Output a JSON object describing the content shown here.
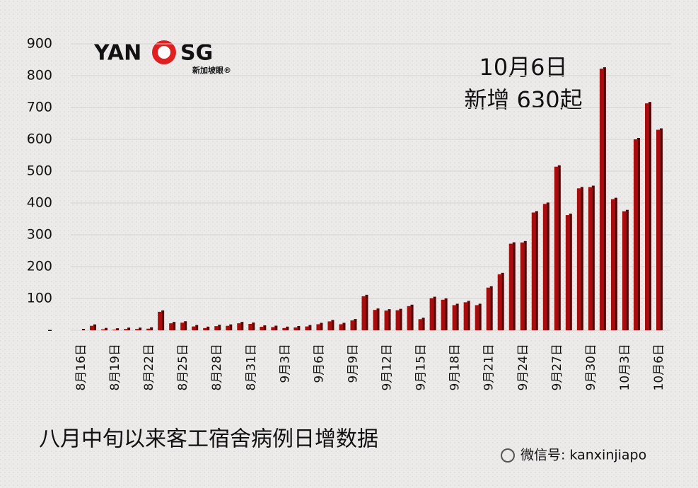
{
  "chart_data": {
    "type": "bar",
    "title": "八月中旬以来客工宿舍病例日增数据",
    "logo": {
      "left": "YAN",
      "right": "SG",
      "subtitle": "新加坡眼®"
    },
    "annotation": [
      "10月6日",
      "新增 630起"
    ],
    "watermark": "微信号: kanxinjiapo",
    "categories": [
      "8月16日",
      null,
      null,
      "8月19日",
      null,
      null,
      "8月22日",
      null,
      null,
      "8月25日",
      null,
      null,
      "8月28日",
      null,
      null,
      "8月31日",
      null,
      null,
      "9月3日",
      null,
      null,
      "9月6日",
      null,
      null,
      "9月9日",
      null,
      null,
      "9月12日",
      null,
      null,
      "9月15日",
      null,
      null,
      "9月18日",
      null,
      null,
      "9月21日",
      null,
      null,
      "9月24日",
      null,
      null,
      "9月27日",
      null,
      null,
      "9月30日",
      null,
      null,
      "10月3日",
      null,
      null,
      "10月6日"
    ],
    "values": [
      0,
      14,
      3,
      2,
      4,
      4,
      5,
      58,
      22,
      24,
      12,
      7,
      13,
      14,
      22,
      20,
      11,
      10,
      7,
      9,
      12,
      19,
      28,
      19,
      31,
      107,
      64,
      62,
      63,
      76,
      35,
      101,
      96,
      79,
      88,
      79,
      134,
      176,
      272,
      276,
      370,
      397,
      514,
      362,
      446,
      450,
      822,
      412,
      374,
      600,
      713,
      630
    ],
    "color": "#a80d0d",
    "ylim": [
      0,
      900
    ],
    "yticks": [
      {
        "value": 0,
        "label": "-"
      },
      100,
      200,
      300,
      400,
      500,
      600,
      700,
      800,
      900
    ],
    "grid": true
  }
}
